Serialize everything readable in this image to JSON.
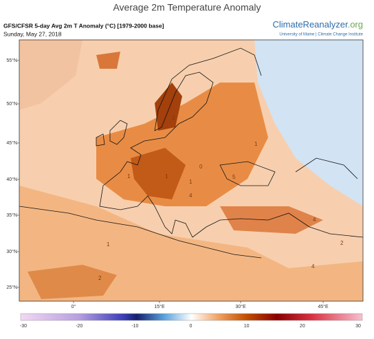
{
  "title": "Average 2m Temperature Anomaly",
  "header": {
    "product": "GFS/CFSR 5-day Avg 2m T Anomaly (°C) [1979-2000 base]",
    "date": "Sunday, May 27, 2018",
    "brand": "ClimateReanalyzer",
    "brand_suffix": ".org",
    "affiliation": "University of Maine | Climate Change Institute"
  },
  "map": {
    "lat_labels": [
      "55°N",
      "50°N",
      "45°N",
      "40°N",
      "35°N",
      "30°N",
      "25°N"
    ],
    "lon_labels": [
      "0°",
      "15°E",
      "30°E",
      "45°E"
    ],
    "contour_labels": [
      "2",
      "1",
      "1",
      "1",
      "0",
      "1",
      "5",
      "4",
      "2",
      "1",
      "4",
      "2",
      "4"
    ]
  },
  "colorbar": {
    "ticks": [
      -30,
      -20,
      -10,
      0,
      10,
      20,
      30
    ]
  }
}
